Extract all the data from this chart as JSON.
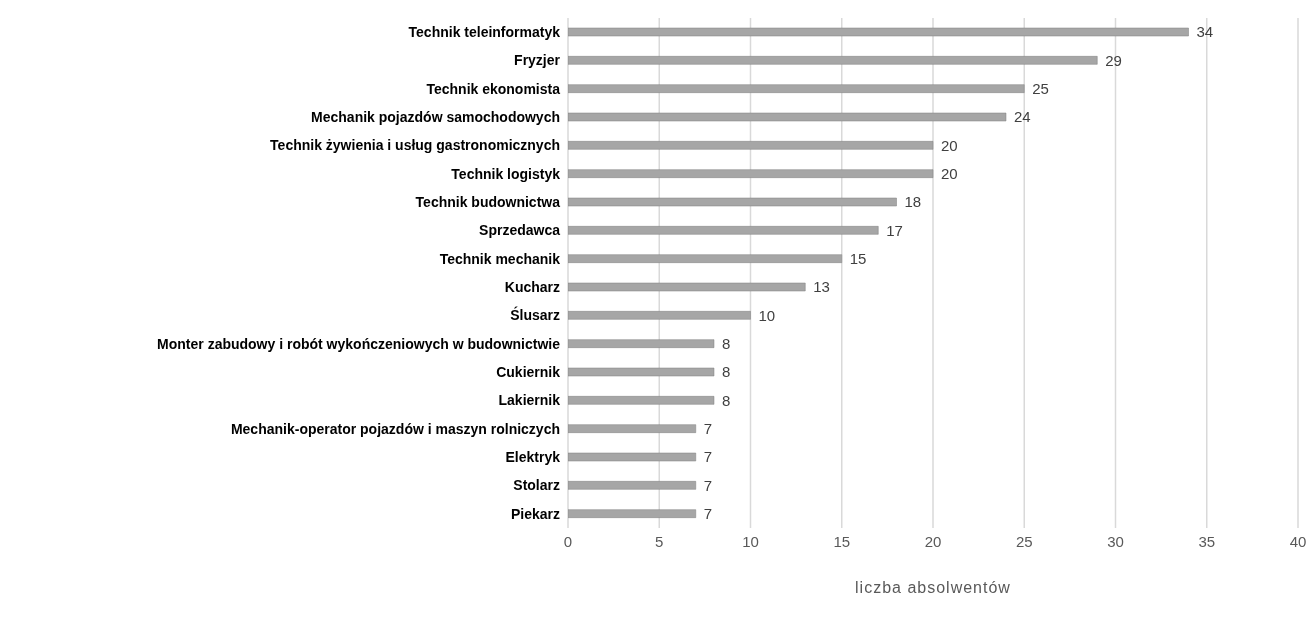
{
  "chart_data": {
    "type": "bar",
    "orientation": "horizontal",
    "xlabel": "liczba absolwentów",
    "categories": [
      "Technik teleinformatyk",
      "Fryzjer",
      "Technik ekonomista",
      "Mechanik pojazdów samochodowych",
      "Technik żywienia i usług gastronomicznych",
      "Technik logistyk",
      "Technik budownictwa",
      "Sprzedawca",
      "Technik mechanik",
      "Kucharz",
      "Ślusarz",
      "Monter zabudowy i robót wykończeniowych w budownictwie",
      "Cukiernik",
      "Lakiernik",
      "Mechanik-operator pojazdów i maszyn rolniczych",
      "Elektryk",
      "Stolarz",
      "Piekarz"
    ],
    "values": [
      34,
      29,
      25,
      24,
      20,
      20,
      18,
      17,
      15,
      13,
      10,
      8,
      8,
      8,
      7,
      7,
      7,
      7
    ],
    "color": "#a6a6a6",
    "xlim": [
      0,
      40
    ],
    "xticks": [
      0,
      5,
      10,
      15,
      20,
      25,
      30,
      35,
      40
    ],
    "grid": "x",
    "data_labels": true,
    "legend": false
  }
}
